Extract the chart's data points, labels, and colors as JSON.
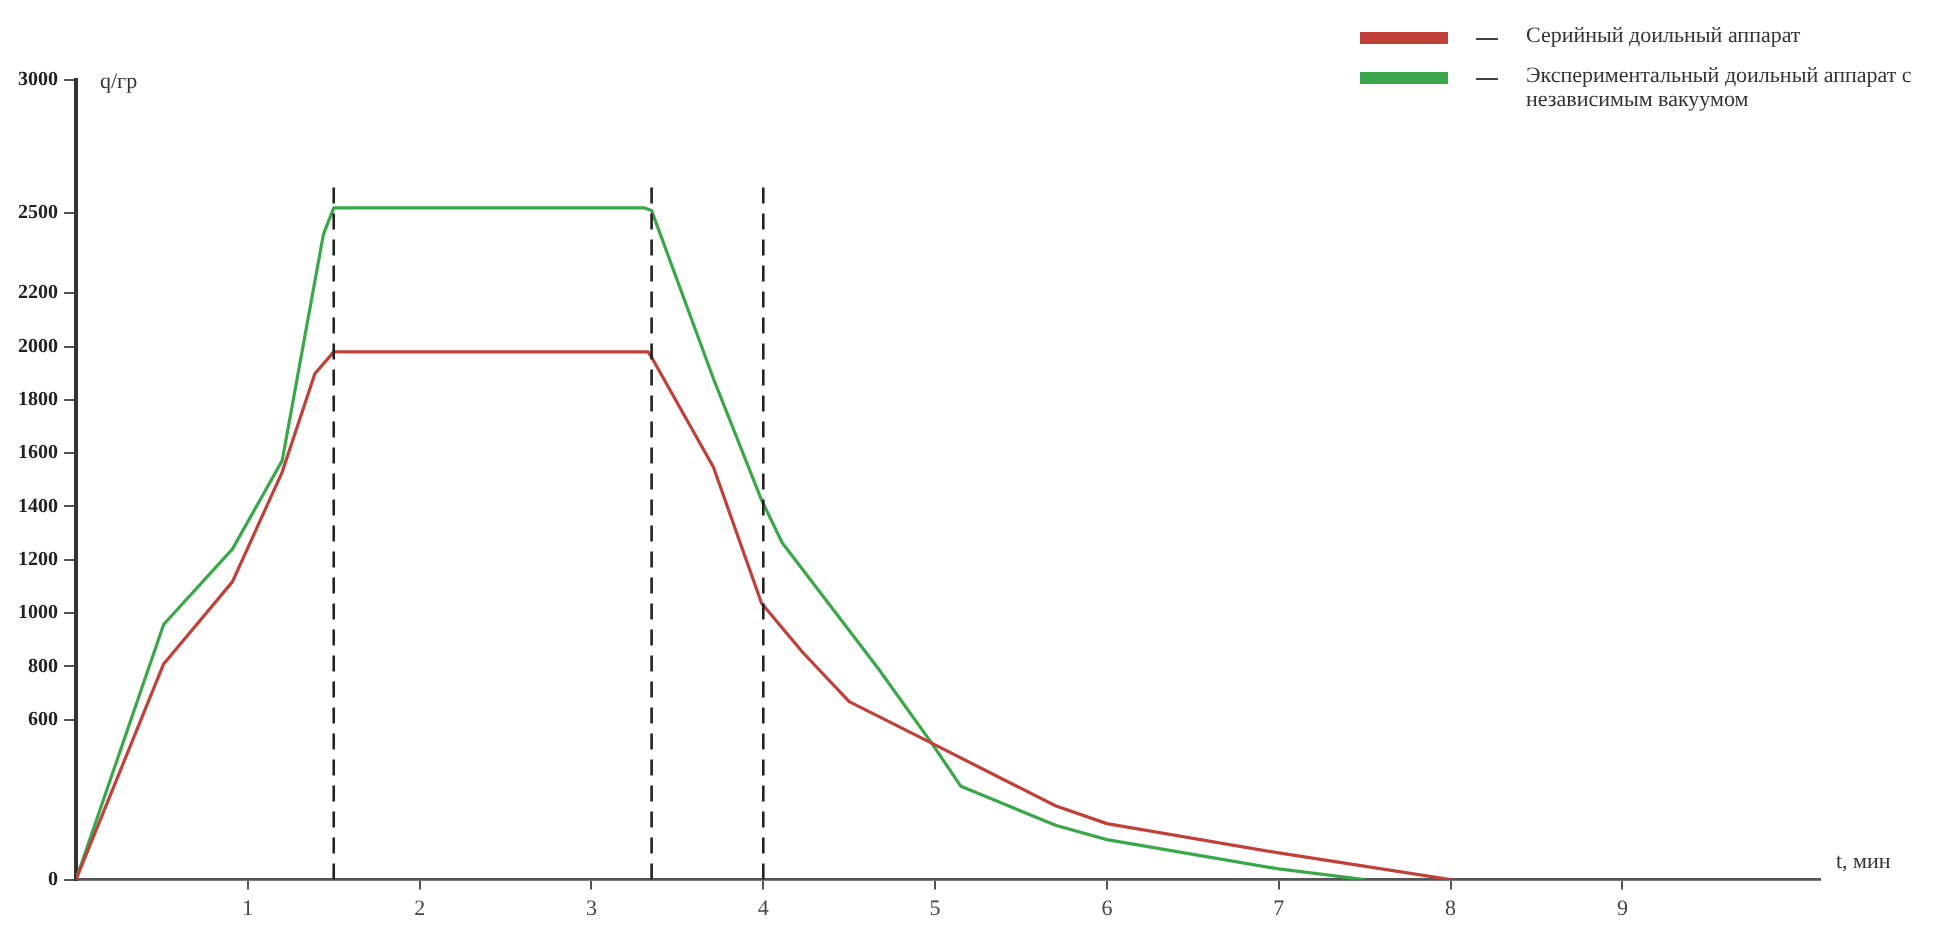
{
  "chart_data": {
    "type": "line",
    "xlabel": "t, мин",
    "ylabel": "q/гр",
    "xlim": [
      0,
      10.15
    ],
    "xticks": [
      1,
      2,
      3,
      4,
      5,
      6,
      7,
      8,
      9
    ],
    "ylim": [
      0,
      3000
    ],
    "yticks": [
      0,
      600,
      800,
      1000,
      1200,
      1400,
      1600,
      1800,
      2000,
      2200,
      2500,
      3000
    ],
    "grid": false,
    "legend": "top right",
    "marker": "none",
    "line_style": "solid",
    "series": [
      {
        "name": "Серийный доильный аппарат",
        "color": "#c0403a",
        "x": [
          0,
          0.51,
          0.91,
          1.2,
          1.39,
          1.5,
          3.33,
          3.35,
          3.71,
          3.99,
          4.23,
          4.5,
          4.98,
          5.7,
          6,
          7,
          8
        ],
        "values": [
          0,
          809,
          1117,
          1529,
          1898,
          1980,
          1980,
          1960,
          1547,
          1037,
          852,
          668,
          512,
          277,
          210,
          100,
          0
        ]
      },
      {
        "name": "Экспериментальный доильный аппарат с независимым вакуумом",
        "color": "#3aa84a",
        "x": [
          0,
          0.51,
          0.91,
          1.2,
          1.44,
          1.5,
          3.31,
          3.35,
          3.71,
          3.99,
          4.11,
          4.67,
          4.98,
          5.15,
          5.7,
          6,
          7,
          7.5
        ],
        "values": [
          0,
          957,
          1240,
          1572,
          2421,
          2520,
          2520,
          2510,
          1879,
          1424,
          1264,
          791,
          512,
          350,
          204,
          150,
          40,
          0
        ]
      }
    ],
    "ref_lines": [
      {
        "axis": "x",
        "value": 1.5,
        "color": "#222222",
        "line_style": "dashed"
      },
      {
        "axis": "x",
        "value": 3.35,
        "color": "#222222",
        "line_style": "dashed"
      },
      {
        "axis": "x",
        "value": 4,
        "color": "#222222",
        "line_style": "dashed"
      }
    ]
  }
}
